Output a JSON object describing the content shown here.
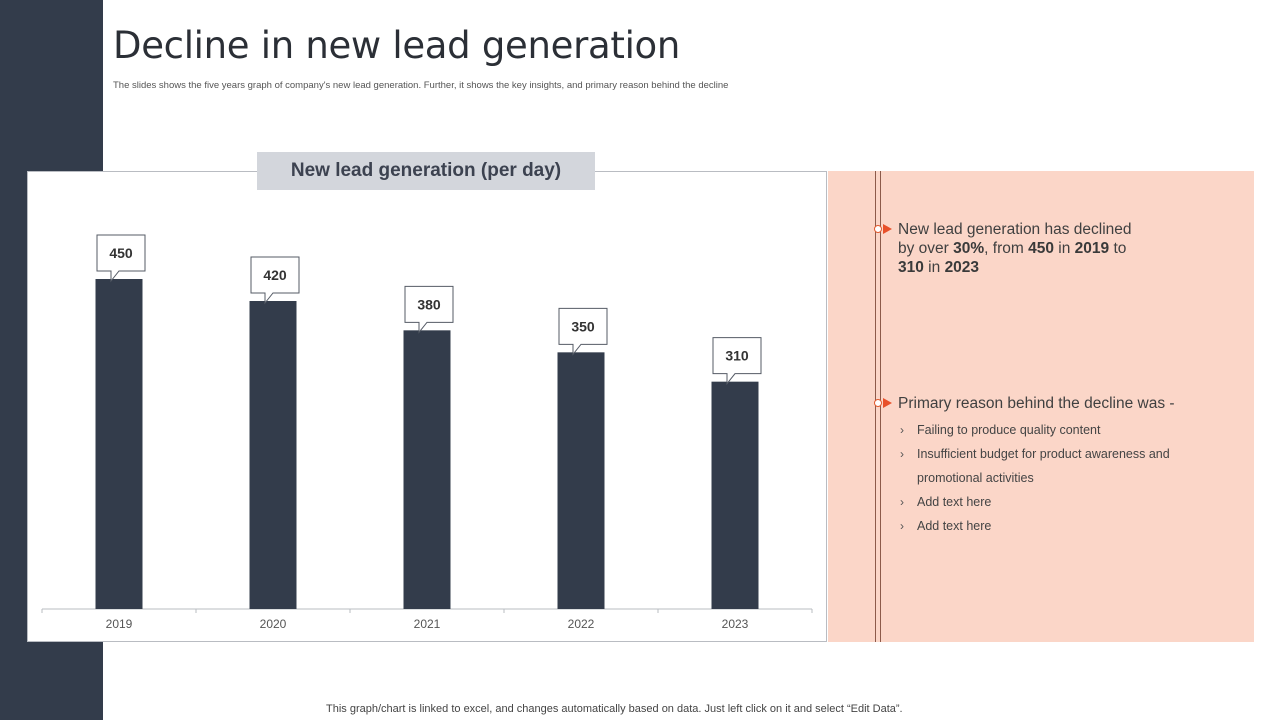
{
  "slide": {
    "title": "Decline in new lead generation",
    "subtitle": "The slides shows the five years graph of company's new lead generation. Further, it shows the key insights, and primary reason behind the decline",
    "footer": "This graph/chart is linked to excel, and changes automatically based on data. Just left click on it and select “Edit Data”."
  },
  "colors": {
    "sidebar": "#333c4b",
    "bar": "#333c4b",
    "panel": "#fbd6c8",
    "accent": "#e8502a"
  },
  "chart_data": {
    "type": "bar",
    "title": "New lead generation (per day)",
    "categories": [
      "2019",
      "2020",
      "2021",
      "2022",
      "2023"
    ],
    "values": [
      450,
      420,
      380,
      350,
      310
    ],
    "data_labels": [
      "450",
      "420",
      "380",
      "350",
      "310"
    ],
    "xlabel": "",
    "ylabel": "",
    "ylim": [
      0,
      500
    ],
    "grid": false,
    "legend": "none"
  },
  "insights": {
    "insight1": {
      "line1": "New lead generation has declined",
      "by_over": "by over ",
      "pct": "30%",
      "from": ", from ",
      "from_value": "450",
      "in1": " in ",
      "from_year": "2019",
      "to": " to",
      "to_value": "310",
      "in2": " in ",
      "to_year": "2023"
    },
    "reason_heading": "Primary reason behind the decline was -",
    "bullet_glyph": "›",
    "reasons": [
      "Failing to produce  quality content",
      "Insufficient  budget for product  awareness and promotional  activities",
      "Add text here",
      "Add text here"
    ]
  }
}
